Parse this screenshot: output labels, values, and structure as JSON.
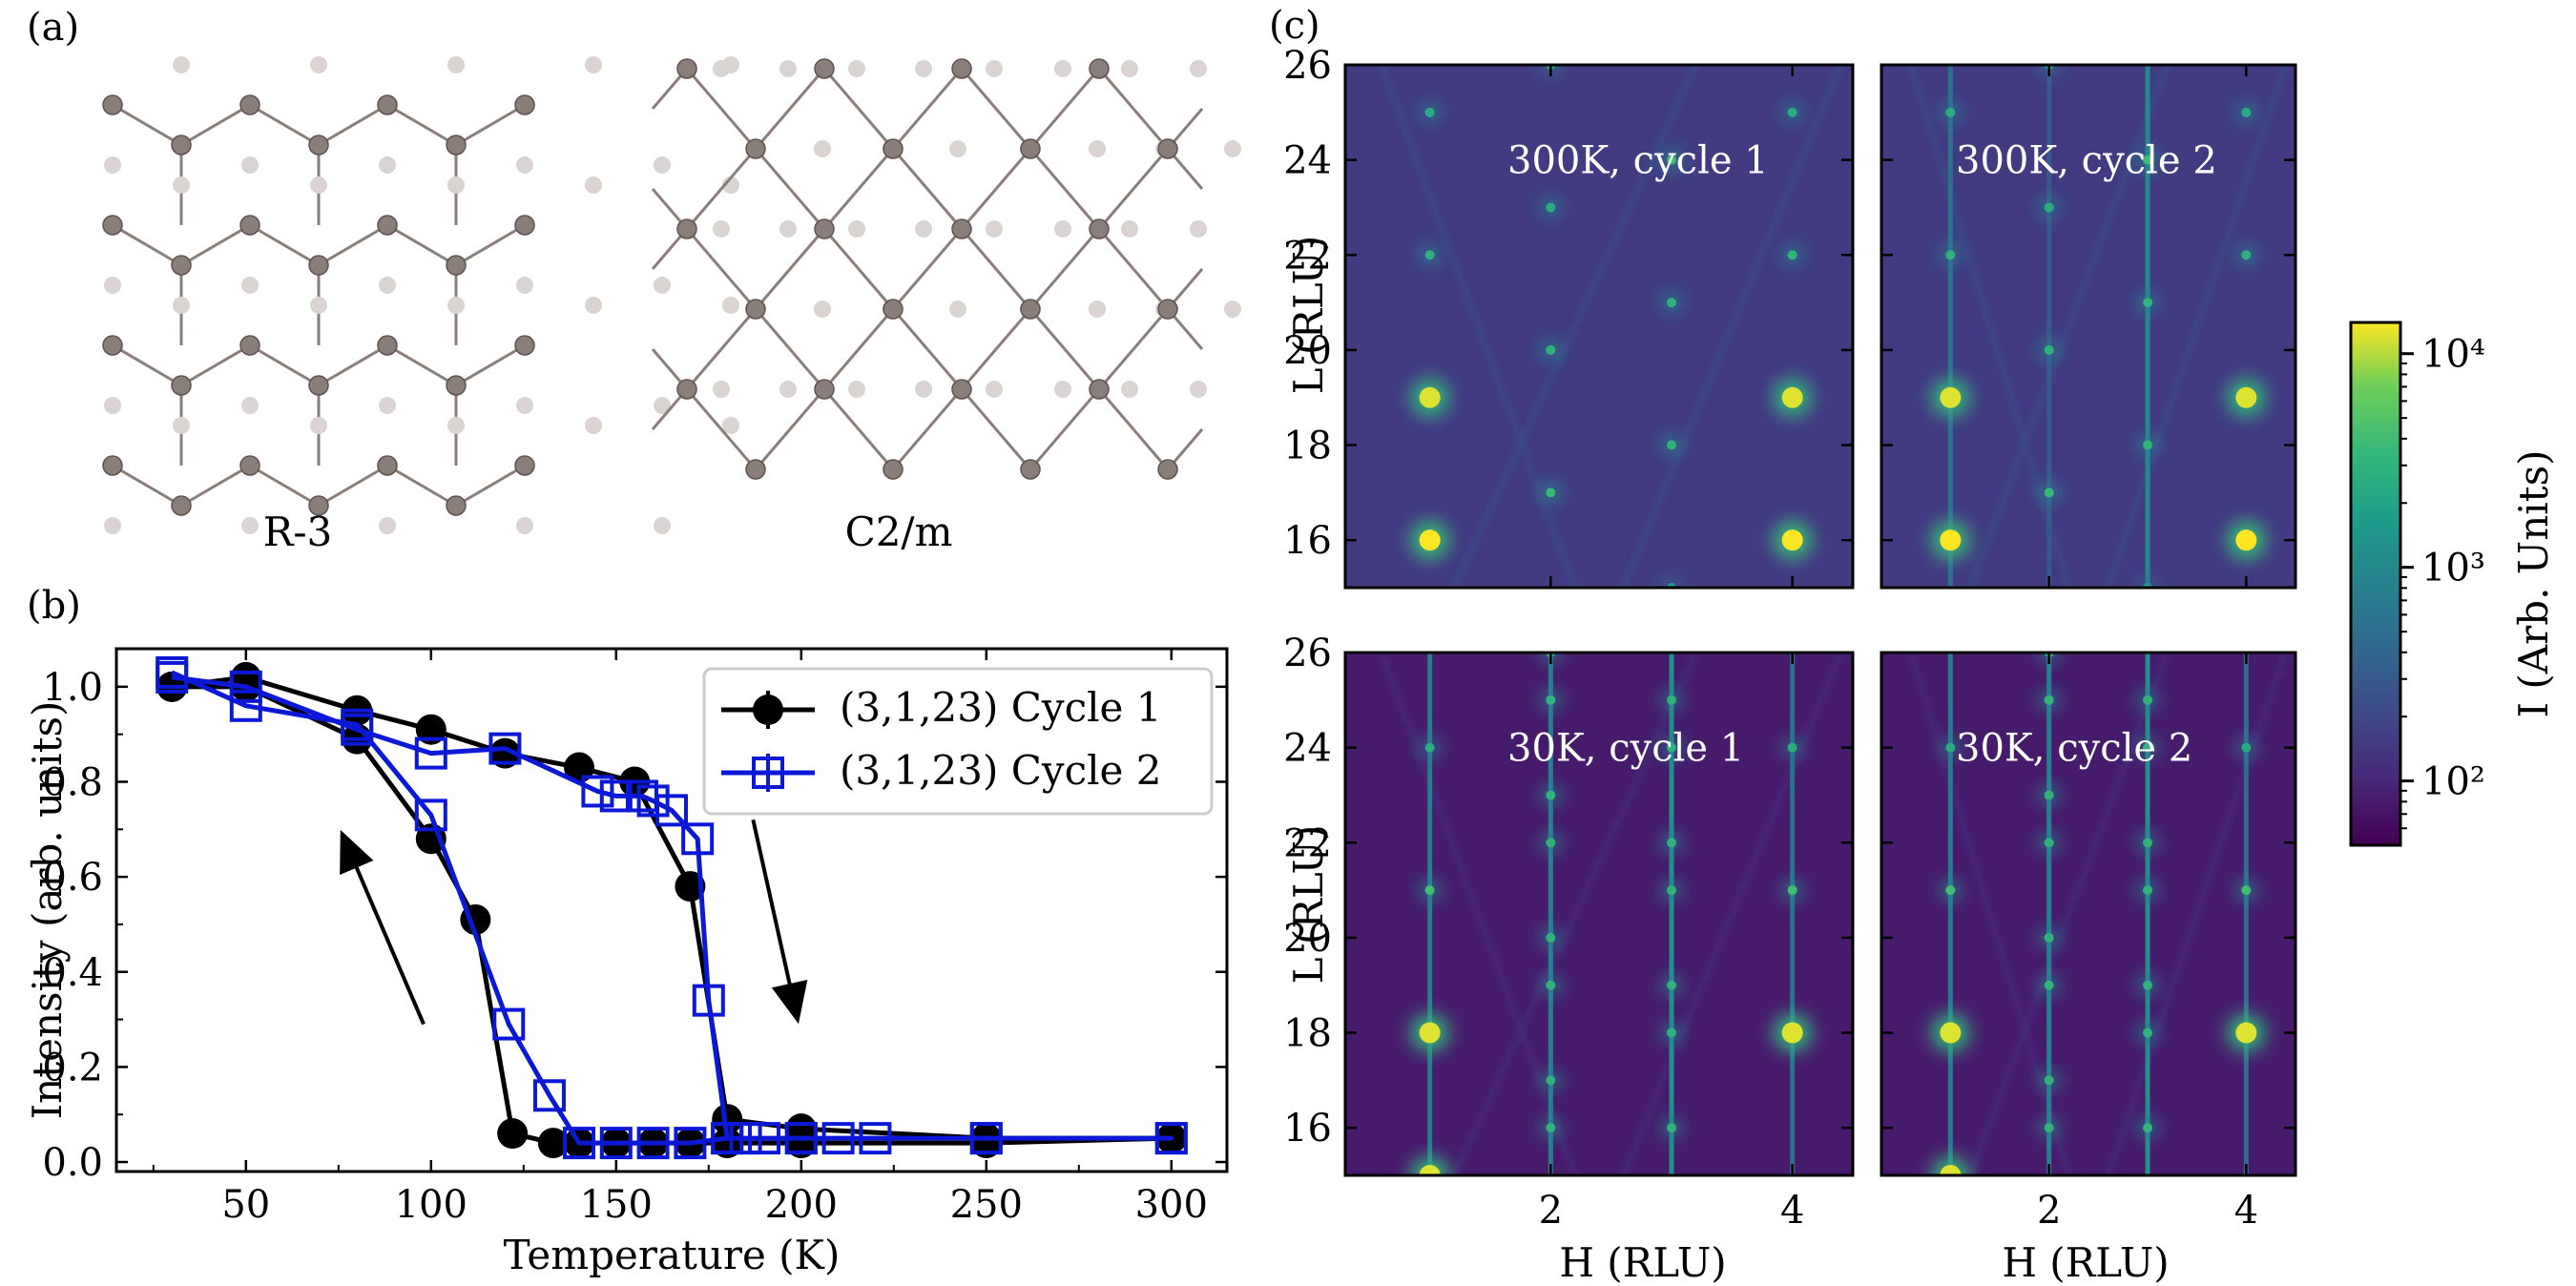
{
  "panel_labels": {
    "a": "(a)",
    "b": "(b)",
    "c": "(c)"
  },
  "structures": [
    {
      "label": "R-3",
      "atom_color": "#8a7e7a",
      "ghost_color": "#d9d4d2"
    },
    {
      "label": "C2/m",
      "atom_color": "#8a7e7a",
      "ghost_color": "#d9d4d2"
    }
  ],
  "colorbar": {
    "label": "I (Arb. Units)",
    "ticks": [
      {
        "value": 100,
        "label": "10²"
      },
      {
        "value": 1000,
        "label": "10³"
      },
      {
        "value": 10000,
        "label": "10⁴"
      }
    ],
    "range": [
      50,
      14000
    ],
    "scale": "log",
    "colormap": "viridis"
  },
  "chart_data": [
    {
      "type": "line",
      "xlabel": "Temperature (K)",
      "ylabel": "Intensity (arb. units)",
      "xlim": [
        15,
        315
      ],
      "ylim": [
        -0.02,
        1.08
      ],
      "xticks": [
        50,
        100,
        150,
        200,
        250,
        300
      ],
      "yticks": [
        0.0,
        0.2,
        0.4,
        0.6,
        0.8,
        1.0
      ],
      "legend_position": "top-right",
      "series": [
        {
          "name": "(3,1,23) Cycle 1",
          "color": "#000000",
          "marker": "circle-filled",
          "x": [
            30,
            50,
            80,
            100,
            120,
            140,
            155,
            170,
            180,
            200,
            250,
            300,
            300,
            250,
            200,
            180,
            170,
            160,
            150,
            140,
            133,
            122,
            112,
            100,
            80,
            50,
            30
          ],
          "y": [
            1.0,
            1.02,
            0.95,
            0.91,
            0.86,
            0.83,
            0.8,
            0.58,
            0.09,
            0.07,
            0.05,
            0.05,
            0.05,
            0.04,
            0.04,
            0.04,
            0.04,
            0.04,
            0.04,
            0.04,
            0.04,
            0.06,
            0.51,
            0.68,
            0.89,
            1.0,
            1.0
          ]
        },
        {
          "name": "(3,1,23) Cycle 2",
          "color": "#0b18d6",
          "marker": "square-open",
          "x": [
            30,
            50,
            80,
            100,
            120,
            145,
            150,
            157,
            160,
            165,
            172,
            175,
            180,
            185,
            190,
            200,
            210,
            220,
            250,
            300,
            300,
            250,
            200,
            180,
            170,
            160,
            150,
            140,
            132,
            121,
            100,
            80,
            50,
            30
          ],
          "y": [
            1.02,
            1.0,
            0.91,
            0.86,
            0.87,
            0.78,
            0.77,
            0.77,
            0.76,
            0.74,
            0.68,
            0.34,
            0.05,
            0.05,
            0.05,
            0.05,
            0.05,
            0.05,
            0.05,
            0.05,
            0.05,
            0.05,
            0.05,
            0.05,
            0.04,
            0.04,
            0.04,
            0.04,
            0.14,
            0.29,
            0.73,
            0.92,
            0.96,
            1.03
          ]
        }
      ],
      "arrows": [
        {
          "direction": "up",
          "from": [
            98,
            0.29
          ],
          "to": [
            76,
            0.69
          ]
        },
        {
          "direction": "down",
          "from": [
            187,
            0.72
          ],
          "to": [
            199,
            0.3
          ]
        }
      ]
    },
    {
      "type": "heatmap",
      "xlabel": "H (RLU)",
      "ylabel": "L (RLU)",
      "xlim": [
        0.3,
        4.5
      ],
      "ylim": [
        15,
        26
      ],
      "xticks": [
        2,
        4
      ],
      "yticks": [
        16,
        18,
        20,
        22,
        24,
        26
      ],
      "panels": [
        {
          "annotation": "300K, cycle 1",
          "background": 150,
          "spots": [
            {
              "h": 1,
              "l": 16,
              "i": 14000
            },
            {
              "h": 1,
              "l": 19,
              "i": 12000
            },
            {
              "h": 1,
              "l": 22,
              "i": 3000
            },
            {
              "h": 1,
              "l": 25,
              "i": 2500
            },
            {
              "h": 2,
              "l": 17,
              "i": 3500
            },
            {
              "h": 2,
              "l": 20,
              "i": 3000
            },
            {
              "h": 2,
              "l": 23,
              "i": 2500
            },
            {
              "h": 2,
              "l": 26,
              "i": 2000
            },
            {
              "h": 3,
              "l": 15,
              "i": 1500
            },
            {
              "h": 3,
              "l": 18,
              "i": 3000
            },
            {
              "h": 3,
              "l": 21,
              "i": 3000
            },
            {
              "h": 3,
              "l": 24,
              "i": 4000
            },
            {
              "h": 4,
              "l": 16,
              "i": 14000
            },
            {
              "h": 4,
              "l": 19,
              "i": 12000
            },
            {
              "h": 4,
              "l": 22,
              "i": 3000
            },
            {
              "h": 4,
              "l": 25,
              "i": 2500
            }
          ],
          "rods": []
        },
        {
          "annotation": "300K, cycle 2",
          "background": 150,
          "spots": [
            {
              "h": 1,
              "l": 16,
              "i": 14000
            },
            {
              "h": 1,
              "l": 19,
              "i": 12000
            },
            {
              "h": 1,
              "l": 22,
              "i": 3000
            },
            {
              "h": 1,
              "l": 25,
              "i": 2500
            },
            {
              "h": 2,
              "l": 17,
              "i": 3500
            },
            {
              "h": 2,
              "l": 20,
              "i": 3000
            },
            {
              "h": 2,
              "l": 23,
              "i": 2500
            },
            {
              "h": 2,
              "l": 26,
              "i": 2000
            },
            {
              "h": 3,
              "l": 15,
              "i": 1500
            },
            {
              "h": 3,
              "l": 18,
              "i": 3000
            },
            {
              "h": 3,
              "l": 21,
              "i": 3000
            },
            {
              "h": 3,
              "l": 24,
              "i": 4000
            },
            {
              "h": 4,
              "l": 16,
              "i": 14000
            },
            {
              "h": 4,
              "l": 19,
              "i": 12000
            },
            {
              "h": 4,
              "l": 22,
              "i": 3000
            },
            {
              "h": 4,
              "l": 25,
              "i": 2500
            }
          ],
          "rods": [
            {
              "h": 1,
              "i": 500
            },
            {
              "h": 2,
              "i": 300
            },
            {
              "h": 3,
              "i": 1000
            }
          ]
        },
        {
          "annotation": "30K, cycle 1",
          "background": 80,
          "spots": [
            {
              "h": 1,
              "l": 15,
              "i": 12000
            },
            {
              "h": 1,
              "l": 18,
              "i": 12000
            },
            {
              "h": 1,
              "l": 21,
              "i": 4000
            },
            {
              "h": 1,
              "l": 24,
              "i": 2500
            },
            {
              "h": 2,
              "l": 16,
              "i": 3000
            },
            {
              "h": 2,
              "l": 17,
              "i": 3000
            },
            {
              "h": 2,
              "l": 19,
              "i": 3000
            },
            {
              "h": 2,
              "l": 20,
              "i": 3000
            },
            {
              "h": 2,
              "l": 22,
              "i": 3000
            },
            {
              "h": 2,
              "l": 23,
              "i": 3000
            },
            {
              "h": 2,
              "l": 25,
              "i": 3000
            },
            {
              "h": 2,
              "l": 26,
              "i": 3000
            },
            {
              "h": 3,
              "l": 16,
              "i": 3000
            },
            {
              "h": 3,
              "l": 18,
              "i": 3000
            },
            {
              "h": 3,
              "l": 19,
              "i": 3000
            },
            {
              "h": 3,
              "l": 21,
              "i": 3000
            },
            {
              "h": 3,
              "l": 22,
              "i": 3000
            },
            {
              "h": 3,
              "l": 24,
              "i": 3000
            },
            {
              "h": 3,
              "l": 25,
              "i": 3000
            },
            {
              "h": 4,
              "l": 18,
              "i": 12000
            },
            {
              "h": 4,
              "l": 21,
              "i": 4000
            },
            {
              "h": 4,
              "l": 24,
              "i": 2500
            }
          ],
          "rods": [
            {
              "h": 1,
              "i": 700
            },
            {
              "h": 2,
              "i": 800
            },
            {
              "h": 3,
              "i": 1200
            },
            {
              "h": 4,
              "i": 500
            }
          ]
        },
        {
          "annotation": "30K, cycle 2",
          "background": 80,
          "spots": [
            {
              "h": 1,
              "l": 15,
              "i": 12000
            },
            {
              "h": 1,
              "l": 18,
              "i": 12000
            },
            {
              "h": 1,
              "l": 21,
              "i": 4000
            },
            {
              "h": 1,
              "l": 24,
              "i": 2500
            },
            {
              "h": 2,
              "l": 16,
              "i": 3000
            },
            {
              "h": 2,
              "l": 17,
              "i": 3000
            },
            {
              "h": 2,
              "l": 19,
              "i": 3000
            },
            {
              "h": 2,
              "l": 20,
              "i": 3000
            },
            {
              "h": 2,
              "l": 22,
              "i": 3000
            },
            {
              "h": 2,
              "l": 23,
              "i": 3000
            },
            {
              "h": 2,
              "l": 25,
              "i": 3000
            },
            {
              "h": 2,
              "l": 26,
              "i": 3000
            },
            {
              "h": 3,
              "l": 16,
              "i": 3000
            },
            {
              "h": 3,
              "l": 18,
              "i": 3000
            },
            {
              "h": 3,
              "l": 19,
              "i": 3000
            },
            {
              "h": 3,
              "l": 21,
              "i": 3000
            },
            {
              "h": 3,
              "l": 22,
              "i": 3000
            },
            {
              "h": 3,
              "l": 24,
              "i": 3000
            },
            {
              "h": 3,
              "l": 25,
              "i": 3000
            },
            {
              "h": 4,
              "l": 18,
              "i": 12000
            },
            {
              "h": 4,
              "l": 21,
              "i": 4000
            },
            {
              "h": 4,
              "l": 24,
              "i": 2500
            }
          ],
          "rods": [
            {
              "h": 1,
              "i": 700
            },
            {
              "h": 2,
              "i": 800
            },
            {
              "h": 3,
              "i": 1200
            },
            {
              "h": 4,
              "i": 500
            }
          ]
        }
      ]
    }
  ]
}
